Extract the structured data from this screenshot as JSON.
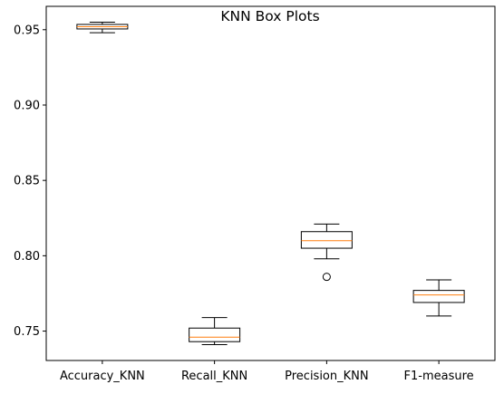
{
  "chart_data": {
    "type": "box",
    "title": "KNN Box Plots",
    "xlabel": "",
    "ylabel": "",
    "categories": [
      "Accuracy_KNN",
      "Recall_KNN",
      "Precision_KNN",
      "F1-measure"
    ],
    "ylim": [
      0.7305,
      0.9655
    ],
    "yticks": [
      0.75,
      0.8,
      0.85,
      0.9,
      0.95
    ],
    "ytick_labels": [
      "0.75",
      "0.80",
      "0.85",
      "0.90",
      "0.95"
    ],
    "boxes": [
      {
        "name": "Accuracy_KNN",
        "whisker_low": 0.948,
        "q1": 0.9505,
        "median": 0.952,
        "q3": 0.9535,
        "whisker_high": 0.955,
        "outliers": []
      },
      {
        "name": "Recall_KNN",
        "whisker_low": 0.741,
        "q1": 0.743,
        "median": 0.746,
        "q3": 0.752,
        "whisker_high": 0.759,
        "outliers": []
      },
      {
        "name": "Precision_KNN",
        "whisker_low": 0.798,
        "q1": 0.805,
        "median": 0.81,
        "q3": 0.816,
        "whisker_high": 0.821,
        "outliers": [
          0.786
        ]
      },
      {
        "name": "F1-measure",
        "whisker_low": 0.76,
        "q1": 0.769,
        "median": 0.774,
        "q3": 0.777,
        "whisker_high": 0.784,
        "outliers": []
      }
    ],
    "grid": false,
    "colors": {
      "box": "#000000",
      "median": "#ff7f0e",
      "outlier": "#000000"
    }
  }
}
